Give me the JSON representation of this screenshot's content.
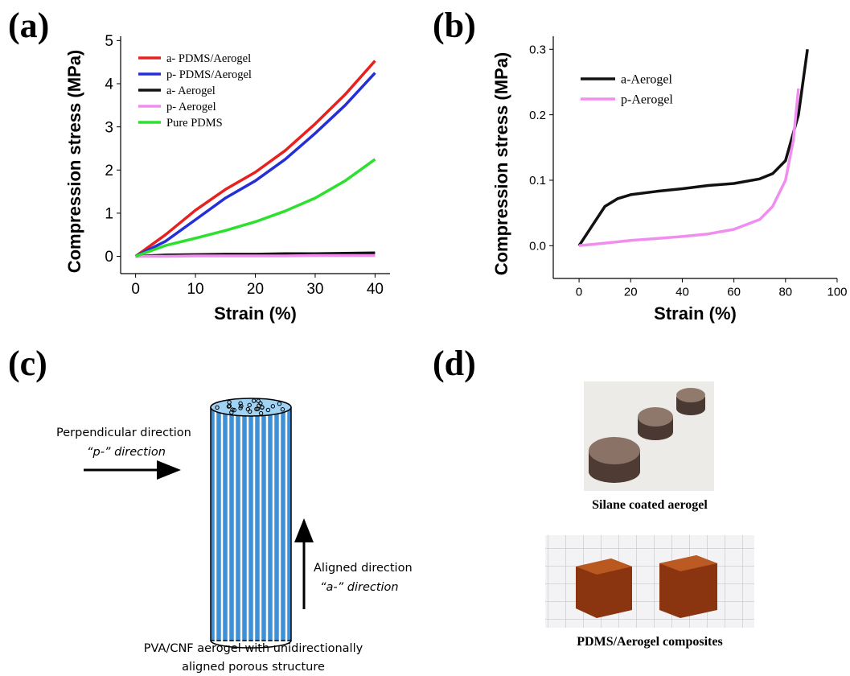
{
  "chart_data": [
    {
      "type": "line",
      "x_label": "Strain (%)",
      "y_label": "Compression stress (MPa)",
      "x": [
        0,
        5,
        10,
        15,
        20,
        25,
        30,
        35,
        40
      ],
      "xlim": [
        -2.5,
        42.5
      ],
      "xticks": [
        0,
        10,
        20,
        30,
        40
      ],
      "ylim": [
        -0.4,
        5.1
      ],
      "yticks": [
        0,
        1,
        2,
        3,
        4,
        5
      ],
      "grid": false,
      "legend": "upper-left",
      "series": [
        {
          "name": "a- PDMS/Aerogel",
          "color": "#e8211f",
          "values": [
            0,
            0.5,
            1.07,
            1.55,
            1.95,
            2.45,
            3.07,
            3.75,
            4.53
          ]
        },
        {
          "name": "p- PDMS/Aerogel",
          "color": "#2430d6",
          "values": [
            0,
            0.35,
            0.85,
            1.35,
            1.75,
            2.25,
            2.85,
            3.5,
            4.25
          ]
        },
        {
          "name": "a- Aerogel",
          "color": "#111111",
          "values": [
            0,
            0.03,
            0.04,
            0.05,
            0.05,
            0.06,
            0.06,
            0.07,
            0.08
          ]
        },
        {
          "name": "p- Aerogel",
          "color": "#f08ef0",
          "values": [
            0,
            0,
            0.01,
            0.01,
            0.01,
            0.01,
            0.02,
            0.02,
            0.02
          ]
        },
        {
          "name": "Pure PDMS",
          "color": "#2ee02e",
          "values": [
            0,
            0.25,
            0.42,
            0.6,
            0.8,
            1.05,
            1.35,
            1.75,
            2.25
          ]
        }
      ]
    },
    {
      "type": "line",
      "x_label": "Strain (%)",
      "y_label": "Compression stress (MPa)",
      "xlim": [
        -10,
        100
      ],
      "xticks": [
        0,
        20,
        40,
        60,
        80,
        100
      ],
      "ylim": [
        -0.05,
        0.32
      ],
      "yticks": [
        {
          "value": 0,
          "label": "0.0"
        },
        0.1,
        0.2,
        0.3
      ],
      "grid": false,
      "legend": "upper-left",
      "series": [
        {
          "name": "a-Aerogel",
          "color": "#111111",
          "x": [
            0,
            5,
            10,
            15,
            20,
            30,
            40,
            50,
            60,
            70,
            75,
            80,
            85,
            88.5
          ],
          "values": [
            0,
            0.03,
            0.06,
            0.072,
            0.078,
            0.083,
            0.087,
            0.092,
            0.095,
            0.102,
            0.11,
            0.13,
            0.2,
            0.3
          ]
        },
        {
          "name": "p-Aerogel",
          "color": "#f08ef0",
          "x": [
            0,
            10,
            20,
            30,
            40,
            50,
            60,
            70,
            75,
            80,
            83,
            85
          ],
          "values": [
            0,
            0.004,
            0.008,
            0.011,
            0.014,
            0.018,
            0.025,
            0.04,
            0.06,
            0.1,
            0.16,
            0.24
          ]
        }
      ]
    }
  ],
  "panel_labels": [
    "(a)",
    "(b)",
    "(c)",
    "(d)"
  ],
  "diagram": {
    "perpendicular": [
      "Perpendicular direction",
      "“p-” direction"
    ],
    "aligned": [
      "Aligned direction",
      "“a-” direction"
    ],
    "caption": [
      "PVA/CNF aerogel with unidirectionally",
      "aligned porous structure"
    ]
  },
  "photos": {
    "top_caption": "Silane coated aerogel",
    "bottom_caption": "PDMS/Aerogel composites"
  }
}
